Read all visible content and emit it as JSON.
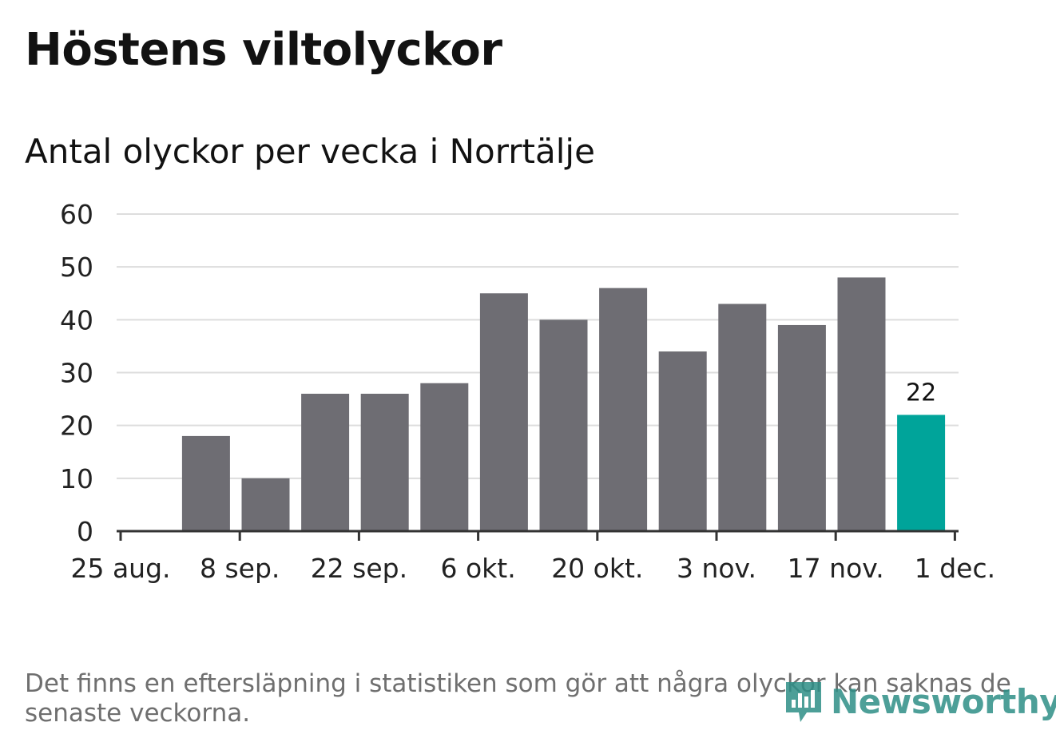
{
  "title": "Höstens viltolyckor",
  "subtitle": "Antal olyckor per vecka i Norrtälje",
  "footnote": "Det finns en eftersläpning i statistiken som gör att några olyckor kan saknas de senaste veckorna.",
  "logo": {
    "text": "Newsworthy",
    "icon": "newsworthy-logo-icon"
  },
  "colors": {
    "bar": "#6e6d73",
    "highlight": "#00a49a",
    "grid": "#dddddd",
    "axis": "#333333"
  },
  "chart_data": {
    "type": "bar",
    "title": "Höstens viltolyckor",
    "subtitle": "Antal olyckor per vecka i Norrtälje",
    "xlabel": "",
    "ylabel": "",
    "ylim": [
      0,
      60
    ],
    "yticks": [
      0,
      10,
      20,
      30,
      40,
      50,
      60
    ],
    "x_ticks": [
      {
        "label": "25 aug.",
        "week": 0
      },
      {
        "label": "8 sep.",
        "week": 2
      },
      {
        "label": "22 sep.",
        "week": 4
      },
      {
        "label": "6 okt.",
        "week": 6
      },
      {
        "label": "20 okt.",
        "week": 8
      },
      {
        "label": "3 nov.",
        "week": 10
      },
      {
        "label": "17 nov.",
        "week": 12
      },
      {
        "label": "1 dec.",
        "week": 14
      }
    ],
    "bars": [
      {
        "week_start": "1 sep.",
        "value": 18
      },
      {
        "week_start": "8 sep.",
        "value": 10
      },
      {
        "week_start": "15 sep.",
        "value": 26
      },
      {
        "week_start": "22 sep.",
        "value": 26
      },
      {
        "week_start": "29 sep.",
        "value": 28
      },
      {
        "week_start": "6 okt.",
        "value": 45
      },
      {
        "week_start": "13 okt.",
        "value": 40
      },
      {
        "week_start": "20 okt.",
        "value": 46
      },
      {
        "week_start": "27 okt.",
        "value": 34
      },
      {
        "week_start": "3 nov.",
        "value": 43
      },
      {
        "week_start": "10 nov.",
        "value": 39
      },
      {
        "week_start": "17 nov.",
        "value": 48
      },
      {
        "week_start": "24 nov.",
        "value": 22,
        "highlight": true,
        "label": "22"
      }
    ]
  }
}
